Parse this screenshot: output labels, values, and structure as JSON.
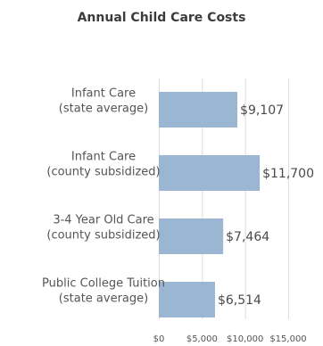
{
  "chart_data": {
    "type": "bar",
    "orientation": "horizontal",
    "title": "Annual Child Care Costs",
    "categories": [
      [
        "Infant Care",
        "(state average)"
      ],
      [
        "Infant Care",
        "(county subsidized)"
      ],
      [
        "3-4 Year Old Care",
        "(county subsidized)"
      ],
      [
        "Public College Tuition",
        "(state average)"
      ]
    ],
    "values": [
      9107,
      11700,
      7464,
      6514
    ],
    "data_labels": [
      "$9,107",
      "$11,700",
      "$7,464",
      "$6,514"
    ],
    "xlim": [
      0,
      15000
    ],
    "x_ticks": [
      0,
      5000,
      10000,
      15000
    ],
    "x_tick_labels": [
      "$0",
      "$5,000",
      "$10,000",
      "$15,000"
    ],
    "grid": true,
    "legend": "none",
    "colors": {
      "bar": "#9ab6d3",
      "grid": "#dcdcdc",
      "text": "#555555",
      "title": "#3c3c3c"
    }
  }
}
